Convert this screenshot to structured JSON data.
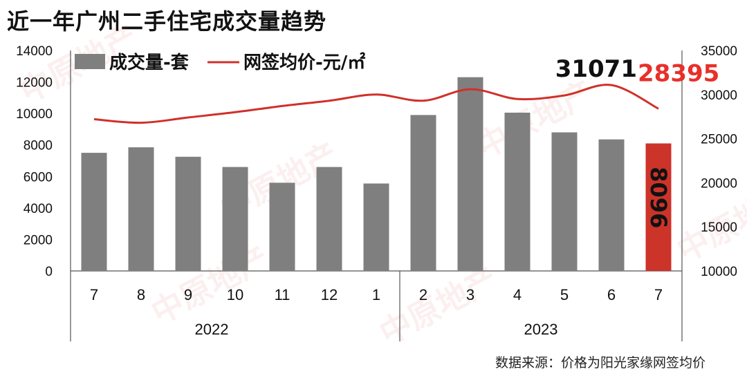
{
  "title": "近一年广州二手住宅成交量趋势",
  "source_note": "数据来源：价格为阳光家缘网签均价",
  "watermark": "中原地产",
  "colors": {
    "bar": "#7f7f7f",
    "highlight_bar": "#cc3329",
    "line": "#d0302a",
    "peak_label": "#111111",
    "last_label": "#e8302a"
  },
  "chart_data": {
    "type": "bar+line",
    "categories": [
      "7",
      "8",
      "9",
      "10",
      "11",
      "12",
      "1",
      "2",
      "3",
      "4",
      "5",
      "6",
      "7"
    ],
    "year_groups": [
      {
        "label": "2022",
        "from": 0,
        "to": 5
      },
      {
        "label": "2023",
        "from": 6,
        "to": 12
      }
    ],
    "year_divider_after": 7,
    "series": [
      {
        "name": "成交量-套",
        "type": "bar",
        "axis": "left",
        "values": [
          7500,
          7850,
          7250,
          6600,
          5600,
          6600,
          5550,
          9900,
          12300,
          10050,
          8800,
          8350,
          8096
        ]
      },
      {
        "name": "网签均价-元/㎡",
        "type": "line",
        "axis": "right",
        "values": [
          27200,
          26800,
          27400,
          28000,
          28700,
          29300,
          30000,
          29300,
          30600,
          29500,
          29900,
          31071,
          28395
        ]
      }
    ],
    "annotations": [
      {
        "text": "31071",
        "series": 1,
        "index": 11
      },
      {
        "text": "28395",
        "series": 1,
        "index": 12
      },
      {
        "text": "8096",
        "series": 0,
        "index": 12
      }
    ],
    "left_axis": {
      "min": 0,
      "max": 14000,
      "ticks": [
        "0",
        "2000",
        "4000",
        "6000",
        "8000",
        "10000",
        "12000",
        "14000"
      ]
    },
    "right_axis": {
      "min": 10000,
      "max": 35000,
      "ticks": [
        "10000",
        "15000",
        "20000",
        "25000",
        "30000",
        "35000"
      ]
    },
    "legend_position": "top-left",
    "highlight_index": 12,
    "grid": false
  }
}
